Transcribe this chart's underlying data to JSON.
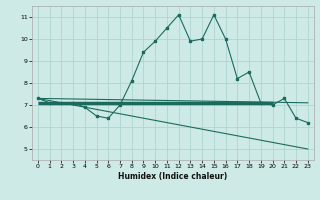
{
  "title": "",
  "xlabel": "Humidex (Indice chaleur)",
  "background_color": "#ceeae6",
  "grid_color": "#aed4cf",
  "line_color": "#1a6b5e",
  "x_ticks": [
    0,
    1,
    2,
    3,
    4,
    5,
    6,
    7,
    8,
    9,
    10,
    11,
    12,
    13,
    14,
    15,
    16,
    17,
    18,
    19,
    20,
    21,
    22,
    23
  ],
  "y_ticks": [
    5,
    6,
    7,
    8,
    9,
    10,
    11
  ],
  "xlim": [
    -0.5,
    23.5
  ],
  "ylim": [
    4.5,
    11.5
  ],
  "main_line_x": [
    0,
    1,
    2,
    3,
    4,
    5,
    6,
    7,
    8,
    9,
    10,
    11,
    12,
    13,
    14,
    15,
    16,
    17,
    18,
    19,
    20,
    21,
    22,
    23
  ],
  "main_line_y": [
    7.3,
    7.1,
    7.1,
    7.1,
    6.9,
    6.5,
    6.4,
    7.0,
    8.1,
    9.4,
    9.9,
    10.5,
    11.1,
    9.9,
    10.0,
    11.1,
    10.0,
    8.2,
    8.5,
    7.1,
    7.0,
    7.3,
    6.4,
    6.2
  ],
  "line2_x": [
    0,
    23
  ],
  "line2_y": [
    7.3,
    5.0
  ],
  "line3_x": [
    0,
    23
  ],
  "line3_y": [
    7.3,
    7.1
  ],
  "thick_line_x": [
    0,
    20
  ],
  "thick_line_y": [
    7.1,
    7.1
  ]
}
